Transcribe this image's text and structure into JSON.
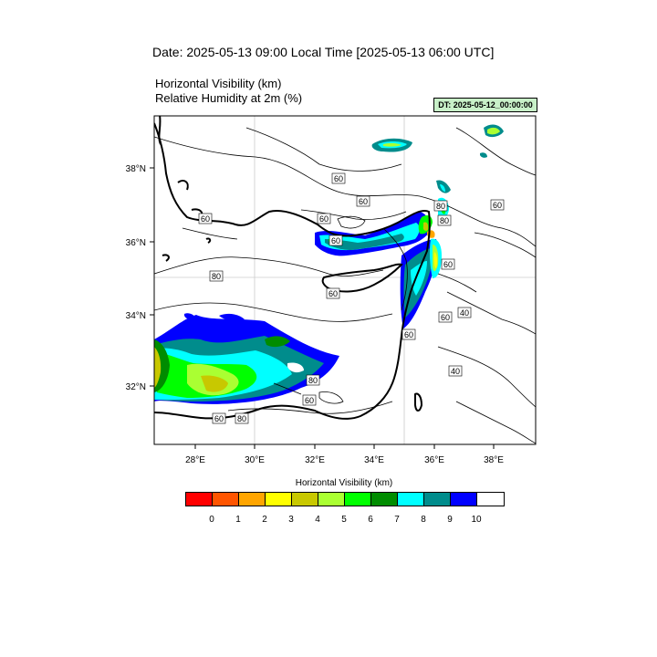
{
  "header": {
    "title": "Date: 2025-05-13  09:00 Local Time [2025-05-13  06:00 UTC]",
    "subtitle_1": "Horizontal Visibility   (km)",
    "subtitle_2": "Relative Humidity at 2m   (%)",
    "dt_label": "DT: 2025-05-12_00:00:00"
  },
  "map": {
    "lon_labels": [
      "28°E",
      "30°E",
      "32°E",
      "34°E",
      "36°E",
      "38°E"
    ],
    "lat_labels": [
      "38°N",
      "36°N",
      "34°N",
      "32°N"
    ],
    "contour_labels": [
      "60",
      "60",
      "60",
      "60",
      "60",
      "80",
      "80",
      "60",
      "60",
      "60",
      "40",
      "60",
      "80",
      "80",
      "60",
      "60",
      "80",
      "60",
      "40",
      "60",
      "60"
    ]
  },
  "colorbar": {
    "title": "Horizontal Visibility  (km)",
    "colors": [
      "#ff0000",
      "#ff5500",
      "#ffa500",
      "#ffff00",
      "#c8c800",
      "#aaff32",
      "#00ff00",
      "#008c00",
      "#00ffff",
      "#008c8c",
      "#0000ff",
      "#ffffff"
    ],
    "labels": [
      "0",
      "1",
      "2",
      "3",
      "4",
      "5",
      "6",
      "7",
      "8",
      "9",
      "10"
    ]
  }
}
